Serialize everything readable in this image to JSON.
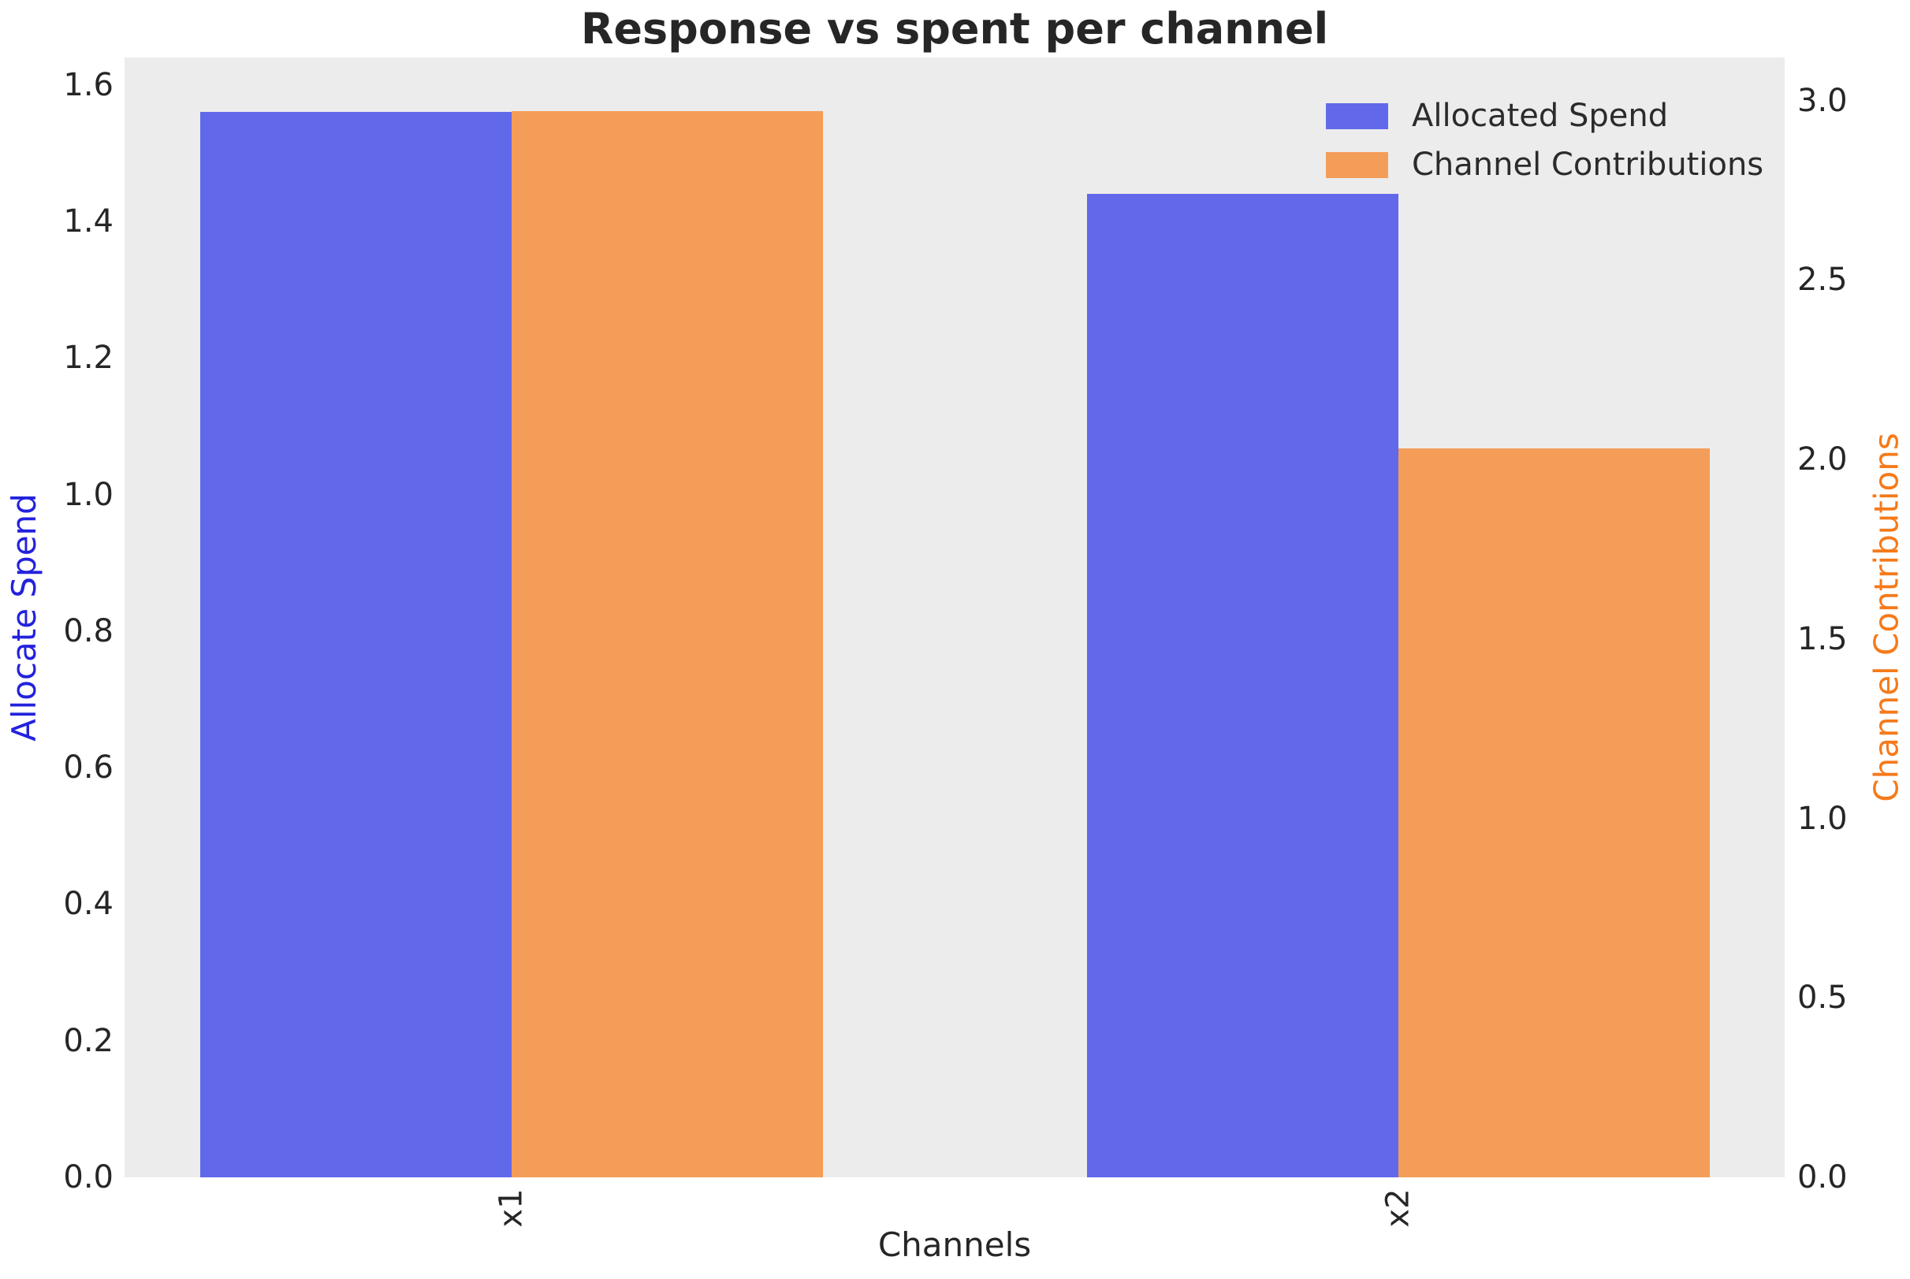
{
  "chart_data": {
    "type": "bar",
    "title": "Response vs spent per channel",
    "xlabel": "Channels",
    "categories": [
      "x1",
      "x2"
    ],
    "series": [
      {
        "name": "Allocated Spend",
        "axis": "left",
        "side": "left",
        "color": "#6268EA",
        "values": [
          1.56,
          1.44
        ]
      },
      {
        "name": "Channel Contributions",
        "axis": "right",
        "side": "right",
        "color": "#F49D58",
        "values": [
          2.97,
          2.03
        ]
      }
    ],
    "left_axis": {
      "label": "Allocate Spend",
      "label_color": "#2222DD",
      "ylim": [
        0,
        1.64
      ],
      "ticks": [
        {
          "label": "0.0",
          "value": 0.0
        },
        {
          "label": "0.2",
          "value": 0.2
        },
        {
          "label": "0.4",
          "value": 0.4
        },
        {
          "label": "0.6",
          "value": 0.6
        },
        {
          "label": "0.8",
          "value": 0.8
        },
        {
          "label": "1.0",
          "value": 1.0
        },
        {
          "label": "1.2",
          "value": 1.2
        },
        {
          "label": "1.4",
          "value": 1.4
        },
        {
          "label": "1.6",
          "value": 1.6
        }
      ]
    },
    "right_axis": {
      "label": "Channel Contributions",
      "label_color": "#F57A1A",
      "ylim": [
        0,
        3.12
      ],
      "ticks": [
        {
          "label": "0.0",
          "value": 0.0
        },
        {
          "label": "0.5",
          "value": 0.5
        },
        {
          "label": "1.0",
          "value": 1.0
        },
        {
          "label": "1.5",
          "value": 1.5
        },
        {
          "label": "2.0",
          "value": 2.0
        },
        {
          "label": "2.5",
          "value": 2.5
        },
        {
          "label": "3.0",
          "value": 3.0
        }
      ]
    },
    "legend": {
      "position": "upper right",
      "entries": [
        "Allocated Spend",
        "Channel Contributions"
      ]
    },
    "grid": false,
    "plot_bg": "#ECECEC",
    "tick_color": "#262626",
    "layout": {
      "group_centers_frac": [
        0.2331,
        0.7673
      ],
      "bar_width_frac": 0.1876
    }
  }
}
